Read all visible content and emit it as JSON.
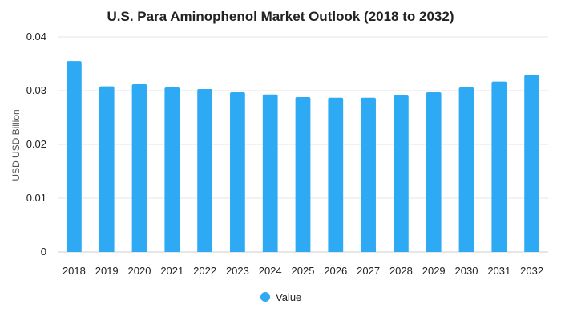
{
  "chart_data": {
    "type": "bar",
    "title": "U.S. Para Aminophenol Market Outlook (2018 to 2032)",
    "xlabel": "",
    "ylabel": "USD USD Billion",
    "ylim": [
      0,
      0.04
    ],
    "yticks": [
      "0",
      "0.01",
      "0.02",
      "0.03",
      "0.04"
    ],
    "grid": true,
    "legend_position": "bottom",
    "categories": [
      "2018",
      "2019",
      "2020",
      "2021",
      "2022",
      "2023",
      "2024",
      "2025",
      "2026",
      "2027",
      "2028",
      "2029",
      "2030",
      "2031",
      "2032"
    ],
    "series": [
      {
        "name": "Value",
        "color": "#2eaaf5",
        "values": [
          0.0355,
          0.0308,
          0.0312,
          0.0306,
          0.0303,
          0.0297,
          0.0293,
          0.0288,
          0.0287,
          0.0287,
          0.0291,
          0.0297,
          0.0306,
          0.0317,
          0.0329
        ]
      }
    ]
  }
}
